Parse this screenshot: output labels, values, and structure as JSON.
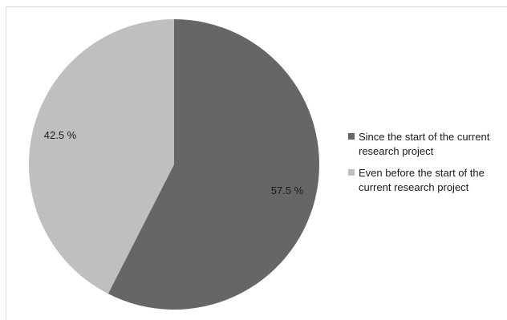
{
  "chart_data": {
    "type": "pie",
    "title": "",
    "slices": [
      {
        "name": "Since the start of the current research project",
        "value": 57.5,
        "label": "57.5 %",
        "color": "#666666"
      },
      {
        "name": "Even before the start of the current research project",
        "value": 42.5,
        "label": "42.5 %",
        "color": "#bfbfbf"
      }
    ],
    "start": "12 o'clock, clockwise",
    "legend_position": "right"
  }
}
